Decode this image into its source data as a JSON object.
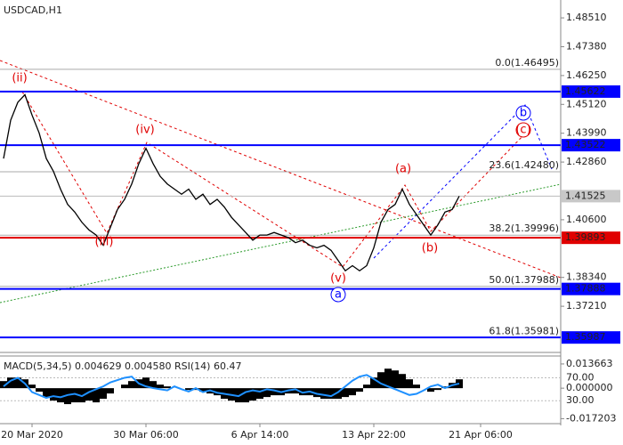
{
  "chart_data": {
    "type": "line",
    "title": "USDCAD,H1",
    "categories": [
      null,
      null,
      null,
      null,
      "20 Mar 2020",
      null,
      null,
      null,
      null,
      null,
      null,
      null,
      null,
      null,
      null,
      null,
      null,
      null,
      null,
      null,
      "30 Mar 06:00",
      null,
      null,
      null,
      null,
      null,
      null,
      null,
      null,
      null,
      null,
      null,
      null,
      null,
      null,
      null,
      "6 Apr 14:00",
      null,
      null,
      null,
      null,
      null,
      null,
      null,
      null,
      null,
      null,
      null,
      null,
      null,
      null,
      null,
      "13 Apr 22:00",
      null,
      null,
      null,
      null,
      null,
      null,
      null,
      null,
      null,
      null,
      null,
      null,
      null,
      null,
      "21 Apr 06:00",
      null,
      null,
      null,
      null,
      null,
      null,
      null,
      null,
      null,
      null
    ],
    "series": [
      {
        "color": "#000000",
        "values": [
          1.43,
          1.445,
          1.452,
          1.455,
          1.447,
          1.44,
          1.43,
          1.425,
          1.418,
          1.412,
          1.409,
          1.405,
          1.402,
          1.4,
          1.396,
          1.403,
          1.41,
          1.414,
          1.42,
          1.428,
          1.434,
          1.428,
          1.423,
          1.42,
          1.418,
          1.416,
          1.418,
          1.414,
          1.416,
          1.412,
          1.414,
          1.411,
          1.407,
          1.404,
          1.401,
          1.398,
          1.4,
          1.4,
          1.401,
          1.4,
          1.399,
          1.397,
          1.398,
          1.396,
          1.395,
          1.396,
          1.394,
          1.39,
          1.386,
          1.388,
          1.386,
          1.388,
          1.395,
          1.405,
          1.41,
          1.412,
          1.418,
          1.412,
          1.408,
          1.404,
          1.4,
          1.404,
          1.409,
          1.41,
          1.41525,
          null,
          null,
          null,
          null,
          null,
          null,
          null,
          null,
          null,
          null,
          null,
          null,
          null
        ]
      }
    ],
    "ylim": [
      1.3554,
      1.4921
    ],
    "yticks": [
      {
        "value": 1.4851,
        "label": "1.48510"
      },
      {
        "value": 1.4738,
        "label": "1.47380"
      },
      {
        "value": 1.4625,
        "label": "1.46250"
      },
      {
        "value": 1.4512,
        "label": "1.45120"
      },
      {
        "value": 1.4399,
        "label": "1.43990"
      },
      {
        "value": 1.4286,
        "label": "1.42860"
      },
      {
        "value": 1.406,
        "label": "1.40600"
      },
      {
        "value": 1.3834,
        "label": "1.38340"
      },
      {
        "value": 1.3721,
        "label": "1.37210"
      }
    ],
    "levels": [
      {
        "value": 1.45622,
        "color": "#0000ff"
      },
      {
        "value": 1.43522,
        "color": "#0000ff"
      },
      {
        "value": 1.39893,
        "color": "#e00000"
      },
      {
        "value": 1.37888,
        "color": "#0000ff"
      },
      {
        "value": 1.35987,
        "color": "#0000ff"
      }
    ],
    "fib_levels": [
      {
        "value": 1.46495,
        "label": "0.0(1.46495)"
      },
      {
        "value": 1.4248,
        "label": "23.6(1.42480)"
      },
      {
        "value": 1.39996,
        "label": "38.2(1.39996)"
      },
      {
        "value": 1.37988,
        "label": "50.0(1.37988)"
      },
      {
        "value": 1.35981,
        "label": "61.8(1.35981)"
      }
    ],
    "last_price": 1.41525,
    "annotations": [
      "(ii)",
      "(iii)",
      "(iv)",
      "(v)",
      "(a)",
      "(b)",
      "(c)",
      "a",
      "b"
    ],
    "indicator": {
      "label": "MACD(5,34,5) 0.004629 0.004580 RSI(14) 60.47",
      "macd": {
        "color": "#000000",
        "values": [
          0.004,
          0.006,
          0.006,
          0.005,
          0.002,
          -0.002,
          -0.005,
          -0.007,
          -0.008,
          -0.009,
          -0.008,
          -0.008,
          -0.007,
          -0.008,
          -0.006,
          -0.003,
          0,
          0.002,
          0.004,
          0.005,
          0.006,
          0.004,
          0.002,
          0.001,
          0,
          0,
          -0.001,
          -0.001,
          -0.002,
          -0.003,
          -0.004,
          -0.006,
          -0.007,
          -0.008,
          -0.008,
          -0.007,
          -0.006,
          -0.005,
          -0.004,
          -0.004,
          -0.003,
          -0.003,
          -0.004,
          -0.004,
          -0.005,
          -0.006,
          -0.006,
          -0.006,
          -0.005,
          -0.004,
          -0.002,
          0.002,
          0.006,
          0.009,
          0.011,
          0.01,
          0.008,
          0.005,
          0.002,
          0,
          -0.002,
          -0.001,
          0.001,
          0.003,
          0.005,
          null,
          null,
          null,
          null,
          null,
          null,
          null,
          null,
          null,
          null,
          null,
          null,
          null
        ]
      },
      "rsi": {
        "color": "#1e90ff",
        "values": [
          55,
          65,
          70,
          60,
          45,
          40,
          35,
          38,
          36,
          40,
          42,
          38,
          45,
          50,
          55,
          62,
          66,
          70,
          72,
          60,
          55,
          52,
          50,
          48,
          55,
          50,
          46,
          52,
          45,
          48,
          44,
          42,
          40,
          38,
          45,
          48,
          46,
          50,
          48,
          45,
          48,
          50,
          44,
          46,
          42,
          40,
          38,
          45,
          55,
          65,
          72,
          75,
          68,
          60,
          55,
          50,
          45,
          40,
          42,
          48,
          55,
          58,
          52,
          57,
          60,
          null,
          null,
          null,
          null,
          null,
          null,
          null,
          null,
          null,
          null,
          null,
          null,
          null
        ]
      },
      "ylim": [
        -0.02001,
        0.01815
      ],
      "yticks": [
        0.013663,
        {
          "value": 0,
          "label": "0.000000"
        },
        -0.017203
      ],
      "y2lim": [
        -10,
        108
      ],
      "y2ticks": [
        {
          "value": 70,
          "label": "70.00"
        },
        {
          "value": 30,
          "label": "30.00"
        }
      ]
    }
  }
}
